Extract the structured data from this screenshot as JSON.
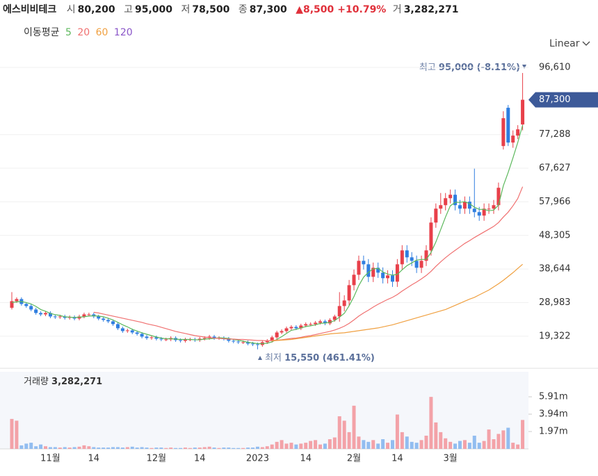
{
  "header": {
    "name": "에스비비테크",
    "stats": [
      {
        "label": "시",
        "value": "80,200"
      },
      {
        "label": "고",
        "value": "95,000"
      },
      {
        "label": "저",
        "value": "78,500"
      },
      {
        "label": "종",
        "value": "87,300"
      }
    ],
    "change": "▲8,500",
    "change_pct": "+10.79%",
    "volume_stat": {
      "label": "거",
      "value": "3,282,271"
    },
    "ma_label": "이동평균",
    "scale_label": "Linear"
  },
  "chart_data": {
    "type": "candlestick",
    "categories": [
      null,
      null,
      null,
      null,
      null,
      null,
      null,
      null,
      "11월",
      null,
      null,
      null,
      null,
      null,
      null,
      null,
      null,
      "14",
      null,
      null,
      null,
      null,
      null,
      null,
      null,
      null,
      null,
      null,
      null,
      null,
      "12월",
      null,
      null,
      null,
      null,
      null,
      null,
      null,
      null,
      "14",
      null,
      null,
      null,
      null,
      null,
      null,
      null,
      null,
      null,
      null,
      null,
      "2023",
      null,
      null,
      null,
      null,
      null,
      null,
      null,
      null,
      null,
      "14",
      null,
      null,
      null,
      null,
      null,
      null,
      null,
      null,
      null,
      "2월",
      null,
      null,
      null,
      null,
      null,
      null,
      null,
      null,
      "14",
      null,
      null,
      null,
      null,
      null,
      null,
      null,
      null,
      null,
      null,
      "3월",
      null,
      null,
      null,
      null,
      null,
      null,
      null,
      null,
      null,
      null,
      null,
      null,
      null,
      null,
      null
    ],
    "open": [
      27500,
      29400,
      30000,
      28600,
      28000,
      27000,
      26000,
      25600,
      26000,
      25000,
      24800,
      25000,
      24600,
      24800,
      24400,
      25000,
      25600,
      25600,
      25000,
      24400,
      24000,
      23600,
      22800,
      21600,
      20800,
      21000,
      20400,
      20000,
      19200,
      18800,
      19000,
      18600,
      18400,
      18400,
      18800,
      18200,
      18000,
      18400,
      18400,
      18200,
      18600,
      18800,
      19200,
      18800,
      18800,
      18600,
      18000,
      17800,
      17600,
      17600,
      17200,
      17000,
      16800,
      17600,
      18000,
      19000,
      20400,
      20800,
      21600,
      22000,
      21600,
      22400,
      22800,
      22800,
      23200,
      23600,
      23000,
      24000,
      25000,
      28000,
      29600,
      34000,
      37000,
      41000,
      40000,
      36400,
      39000,
      37600,
      36000,
      36800,
      35000,
      40000,
      44000,
      42000,
      41000,
      39000,
      41000,
      44000,
      52000,
      56000,
      57000,
      59000,
      60000,
      57000,
      56000,
      58000,
      56000,
      55000,
      54000,
      56000,
      56000,
      57000,
      74000,
      85000,
      75000,
      77000,
      80200
    ],
    "high": [
      32000,
      30500,
      30500,
      29100,
      28500,
      27500,
      26500,
      26500,
      26500,
      25500,
      25500,
      25500,
      25300,
      25300,
      25500,
      26100,
      26100,
      26100,
      25500,
      24900,
      24500,
      24100,
      23300,
      22100,
      21500,
      21500,
      20900,
      20500,
      19700,
      19500,
      19500,
      19100,
      18900,
      19300,
      19300,
      18700,
      18900,
      18900,
      18900,
      19100,
      19300,
      19700,
      19700,
      19300,
      19300,
      19100,
      18500,
      18300,
      18100,
      18100,
      17700,
      17500,
      18100,
      18500,
      19500,
      20900,
      21300,
      22100,
      22500,
      22500,
      22900,
      23300,
      23300,
      23700,
      24100,
      24100,
      24500,
      25500,
      32000,
      31100,
      35500,
      38500,
      42500,
      42500,
      41500,
      40500,
      40500,
      39100,
      38300,
      38300,
      41500,
      45500,
      45500,
      43500,
      42500,
      42500,
      45500,
      53500,
      57500,
      60500,
      60500,
      61500,
      61500,
      58500,
      59500,
      59500,
      67500,
      56500,
      57500,
      57500,
      58500,
      63500,
      84000,
      85800,
      78500,
      80000,
      95000
    ],
    "low": [
      27000,
      28900,
      28100,
      27500,
      26500,
      25500,
      25100,
      25100,
      24500,
      24300,
      24300,
      24100,
      24100,
      23900,
      23900,
      24500,
      25100,
      24500,
      23900,
      23500,
      23100,
      22300,
      21100,
      20300,
      20300,
      19900,
      19500,
      18700,
      18300,
      18300,
      18100,
      17900,
      17900,
      17900,
      17700,
      17500,
      17500,
      17900,
      17700,
      17700,
      18100,
      18300,
      18300,
      18300,
      18100,
      17500,
      17300,
      17100,
      17100,
      16700,
      16500,
      15550,
      16300,
      17100,
      17500,
      18500,
      19900,
      20300,
      21100,
      21100,
      21100,
      21900,
      22300,
      22300,
      22700,
      22500,
      22500,
      23500,
      23500,
      26500,
      28100,
      32500,
      35500,
      38500,
      34900,
      34900,
      36100,
      34500,
      34500,
      33500,
      33500,
      38500,
      40500,
      39500,
      37500,
      37500,
      39500,
      42500,
      50500,
      54500,
      55500,
      57500,
      55500,
      54500,
      54500,
      54500,
      53500,
      52500,
      52500,
      54500,
      54500,
      55500,
      73000,
      74000,
      73500,
      76000,
      78500
    ],
    "close": [
      29400,
      30000,
      28600,
      28000,
      27000,
      26000,
      25600,
      26000,
      25000,
      24800,
      25000,
      24600,
      24800,
      24400,
      25000,
      25600,
      25600,
      25000,
      24400,
      24000,
      23600,
      22800,
      21600,
      20800,
      21000,
      20400,
      20000,
      19200,
      18800,
      19000,
      18600,
      18400,
      18400,
      18800,
      18200,
      18000,
      18400,
      18400,
      18200,
      18600,
      18800,
      19200,
      18800,
      18800,
      18600,
      18000,
      17800,
      17600,
      17600,
      17200,
      17000,
      16800,
      17600,
      18000,
      19000,
      20400,
      20800,
      21600,
      22000,
      21600,
      22400,
      22800,
      22800,
      23200,
      23600,
      23000,
      24000,
      25000,
      28000,
      29600,
      34000,
      37000,
      41000,
      40000,
      36400,
      39000,
      37600,
      36000,
      36800,
      35000,
      40000,
      44000,
      42000,
      41000,
      39000,
      41000,
      44000,
      52000,
      56000,
      57000,
      59000,
      60000,
      57000,
      56000,
      58000,
      56000,
      55000,
      54000,
      56000,
      56000,
      57000,
      62000,
      82000,
      75000,
      77000,
      78800,
      87300
    ],
    "volume": [
      3400000,
      3200000,
      400000,
      600000,
      700000,
      300000,
      500000,
      300000,
      200000,
      200000,
      150000,
      200000,
      150000,
      200000,
      250000,
      400000,
      300000,
      200000,
      150000,
      150000,
      150000,
      200000,
      200000,
      150000,
      200000,
      250000,
      150000,
      200000,
      150000,
      100000,
      150000,
      150000,
      100000,
      150000,
      100000,
      100000,
      150000,
      100000,
      150000,
      150000,
      200000,
      250000,
      150000,
      100000,
      150000,
      150000,
      100000,
      100000,
      100000,
      150000,
      150000,
      250000,
      200000,
      300000,
      500000,
      800000,
      1000000,
      600000,
      700000,
      500000,
      600000,
      700000,
      900000,
      1000000,
      500000,
      600000,
      1100000,
      1300000,
      3700000,
      3200000,
      1900000,
      4900000,
      1400000,
      1000000,
      800000,
      1000000,
      600000,
      1100000,
      700000,
      1000000,
      3900000,
      1900000,
      1400000,
      800000,
      700000,
      1000000,
      1500000,
      5900000,
      3000000,
      1900000,
      1200000,
      800000,
      600000,
      900000,
      1000000,
      700000,
      1500000,
      700000,
      900000,
      2200000,
      1100000,
      1700000,
      2100000,
      2400000,
      700000,
      500000,
      3282271
    ],
    "ma": [
      {
        "name": "5",
        "color": "#5cb85c",
        "values": [
          29000,
          29200,
          29300,
          29000,
          28600,
          27900,
          27000,
          26500,
          25900,
          25500,
          25300,
          24900,
          24800,
          24700,
          24800,
          24900,
          25100,
          25200,
          25100,
          24900,
          24500,
          24000,
          23300,
          22600,
          22000,
          21300,
          20800,
          20300,
          19900,
          19500,
          19100,
          18800,
          18600,
          18600,
          18500,
          18400,
          18400,
          18400,
          18300,
          18300,
          18500,
          18600,
          18700,
          18900,
          18800,
          18700,
          18400,
          18200,
          17900,
          17600,
          17400,
          17200,
          17200,
          17300,
          17700,
          18400,
          19200,
          20100,
          21000,
          21300,
          21700,
          22100,
          22300,
          22600,
          23000,
          23100,
          23300,
          23800,
          24800,
          25900,
          28100,
          30700,
          33900,
          36300,
          37700,
          38700,
          38800,
          37800,
          37200,
          36900,
          37100,
          38400,
          39600,
          40400,
          41200,
          41400,
          41400,
          43400,
          46400,
          50000,
          53600,
          56800,
          57800,
          57800,
          58000,
          57400,
          56400,
          55800,
          55800,
          55400,
          55600,
          57000,
          62600,
          66400,
          70600,
          75000,
          80000
        ]
      },
      {
        "name": "20",
        "color": "#f07070",
        "values": [
          null,
          null,
          null,
          null,
          null,
          null,
          null,
          null,
          null,
          null,
          null,
          null,
          null,
          null,
          null,
          null,
          null,
          26200,
          26000,
          25700,
          25400,
          25100,
          24800,
          24500,
          24200,
          23900,
          23600,
          23300,
          22900,
          22600,
          22300,
          21900,
          21500,
          21100,
          20700,
          20400,
          20100,
          19800,
          19500,
          19300,
          19100,
          18900,
          18800,
          18700,
          18600,
          18500,
          18500,
          18400,
          18400,
          18300,
          18200,
          18100,
          18100,
          18000,
          18100,
          18200,
          18300,
          18500,
          18700,
          18800,
          19000,
          19300,
          19500,
          19800,
          20100,
          20400,
          20700,
          21100,
          21600,
          22200,
          23000,
          24000,
          25100,
          26000,
          26800,
          27700,
          28500,
          29200,
          29900,
          30500,
          31300,
          32300,
          33200,
          34100,
          34900,
          35800,
          36800,
          38000,
          39400,
          40700,
          41900,
          43000,
          44000,
          45000,
          46000,
          46800,
          47700,
          48500,
          49300,
          50100,
          50900,
          52000,
          53600,
          55000,
          56800,
          58900,
          62300
        ]
      },
      {
        "name": "60",
        "color": "#f0a040",
        "values": [
          null,
          null,
          null,
          null,
          null,
          null,
          null,
          null,
          null,
          null,
          null,
          null,
          null,
          null,
          null,
          null,
          null,
          null,
          null,
          null,
          null,
          null,
          null,
          null,
          null,
          null,
          null,
          null,
          null,
          null,
          null,
          null,
          null,
          null,
          null,
          null,
          null,
          null,
          null,
          null,
          null,
          null,
          null,
          null,
          null,
          null,
          null,
          null,
          null,
          null,
          null,
          null,
          null,
          null,
          18000,
          18100,
          18200,
          18300,
          18400,
          18600,
          18800,
          19000,
          19200,
          19400,
          19600,
          19800,
          20000,
          20100,
          20200,
          20300,
          20500,
          20700,
          20900,
          21100,
          21300,
          21500,
          21700,
          22000,
          22300,
          22600,
          23000,
          23400,
          23800,
          24200,
          24600,
          25000,
          25400,
          25800,
          26200,
          26600,
          27000,
          27600,
          28200,
          28800,
          29400,
          30000,
          30500,
          31200,
          31900,
          32600,
          33500,
          34400,
          35400,
          36500,
          37600,
          38800,
          40000
        ]
      },
      {
        "name": "120",
        "color": "#8a55c8",
        "values": [
          null,
          null,
          null,
          null,
          null,
          null,
          null,
          null,
          null,
          null,
          null,
          null,
          null,
          null,
          null,
          null,
          null,
          null,
          null,
          null,
          null,
          null,
          null,
          null,
          null,
          null,
          null,
          null,
          null,
          null,
          null,
          null,
          null,
          null,
          null,
          null,
          null,
          null,
          null,
          null,
          null,
          null,
          null,
          null,
          null,
          null,
          null,
          null,
          null,
          null,
          null,
          null,
          null,
          null,
          null,
          null,
          null,
          null,
          null,
          null,
          null,
          null,
          null,
          null,
          null,
          null,
          null,
          null,
          null,
          null,
          null,
          null,
          null,
          null,
          null,
          null,
          null,
          null,
          null,
          null,
          null,
          null,
          null,
          null,
          null,
          null,
          null,
          null,
          null,
          null,
          null,
          null,
          null,
          null,
          null,
          null,
          null,
          null,
          null,
          null,
          null,
          null,
          null,
          null,
          null,
          null,
          null
        ]
      }
    ],
    "up_color": "#e8404a",
    "down_color": "#2f7ee0",
    "up_volume_color": "#f3a2a8",
    "down_volume_color": "#92bdf0",
    "ylim": [
      11100,
      101000
    ],
    "yticks": [
      {
        "value": 19322,
        "label": "19,322"
      },
      {
        "value": 28983,
        "label": "28,983"
      },
      {
        "value": 38644,
        "label": "38,644"
      },
      {
        "value": 48305,
        "label": "48,305"
      },
      {
        "value": 57966,
        "label": "57,966"
      },
      {
        "value": 67627,
        "label": "67,627"
      },
      {
        "value": 77288,
        "label": "77,288"
      },
      {
        "value": 96610,
        "label": "96,610"
      }
    ],
    "vlim": [
      0,
      8750000
    ],
    "vticks": [
      {
        "value": 1970000,
        "label": "1.97m"
      },
      {
        "value": 3940000,
        "label": "3.94m"
      },
      {
        "value": 5910000,
        "label": "5.91m"
      }
    ],
    "grid": true,
    "last_price_label": "87,300",
    "high_annotation": {
      "prefix": "최고",
      "text": "95,000 (-8.11%)"
    },
    "low_annotation": {
      "prefix": "최저",
      "text": "15,550 (461.41%)"
    },
    "volume_title": {
      "label": "거래량",
      "value": "3,282,271"
    }
  }
}
